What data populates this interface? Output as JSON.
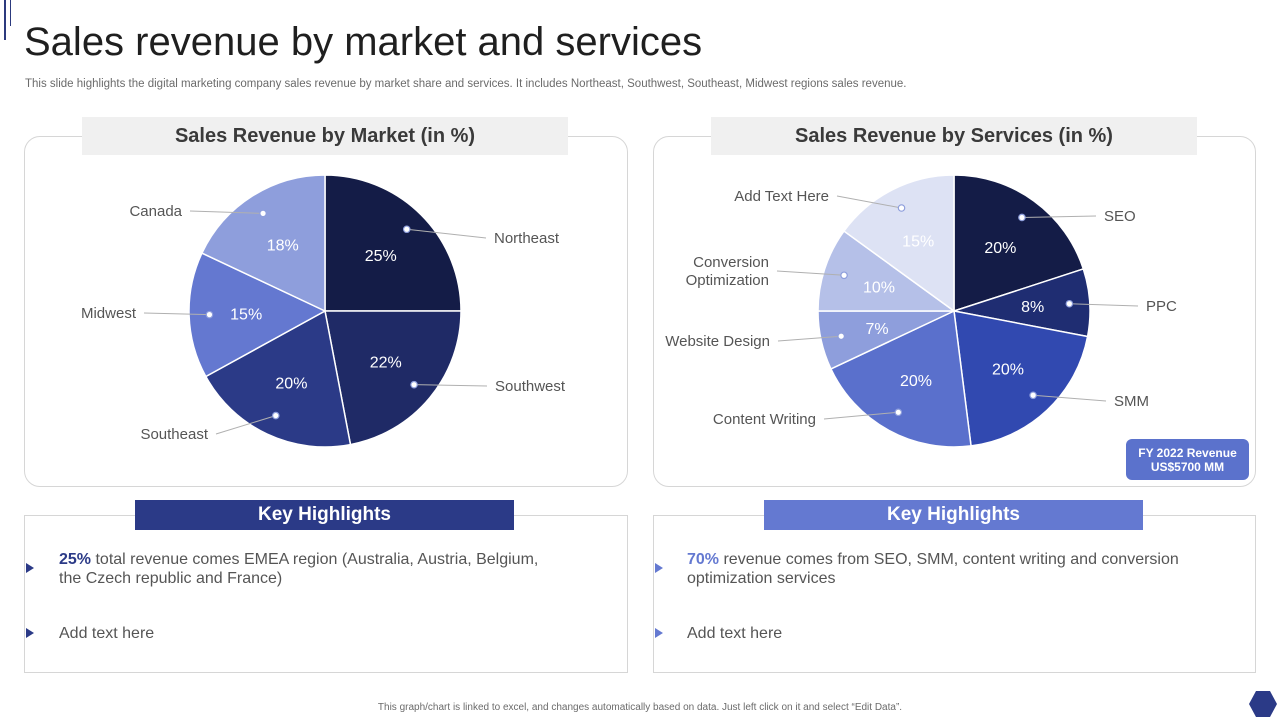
{
  "header": {
    "title": "Sales revenue by market and services",
    "subtitle": "This slide highlights the digital marketing company sales revenue by market share and services. It includes Northeast, Southwest, Southeast, Midwest regions sales revenue."
  },
  "chart_data": [
    {
      "type": "pie",
      "title": "Sales Revenue by Market (in %)",
      "categories": [
        "Northeast",
        "Southwest",
        "Southeast",
        "Midwest",
        "Canada"
      ],
      "values": [
        25,
        22,
        20,
        15,
        18
      ],
      "value_labels": [
        "25%",
        "22%",
        "20%",
        "15%",
        "18%"
      ],
      "colors": [
        "#141c47",
        "#1f2a66",
        "#2b3a87",
        "#6478d0",
        "#8e9edc"
      ]
    },
    {
      "type": "pie",
      "title": "Sales Revenue by Services (in %)",
      "categories": [
        "SEO",
        "PPC",
        "SMM",
        "Content Writing",
        "Website Design",
        "Conversion Optimization",
        "Add Text Here"
      ],
      "category_lines": [
        [
          "SEO"
        ],
        [
          "PPC"
        ],
        [
          "SMM"
        ],
        [
          "Content Writing"
        ],
        [
          "Website Design"
        ],
        [
          "Conversion",
          "Optimization"
        ],
        [
          "Add Text Here"
        ]
      ],
      "values": [
        20,
        8,
        20,
        20,
        7,
        10,
        15
      ],
      "value_labels": [
        "20%",
        "8%",
        "20%",
        "20%",
        "7%",
        "10%",
        "15%"
      ],
      "colors": [
        "#141c47",
        "#1f2d72",
        "#3149b0",
        "#5a70cc",
        "#8e9edc",
        "#b5c0e8",
        "#dde2f4"
      ]
    }
  ],
  "badge": {
    "line1": "FY  2022 Revenue",
    "line2": "US$5700 MM"
  },
  "highlights": {
    "left": {
      "header": "Key Highlights",
      "item1_strong": "25%",
      "item1_line1": " total revenue  comes EMEA region (Australia,  Austria,  Belgium,",
      "item1_line2": "the Czech republic and France)",
      "item2": "Add text here"
    },
    "right": {
      "header": "Key Highlights",
      "item1_strong": "70%",
      "item1_line1": " revenue comes from SEO, SMM, content writing and conversion",
      "item1_line2": "optimization services",
      "item2": "Add text here"
    }
  },
  "footer": "This graph/chart is linked to excel, and changes automatically based on data. Just left click on it and select “Edit Data”."
}
